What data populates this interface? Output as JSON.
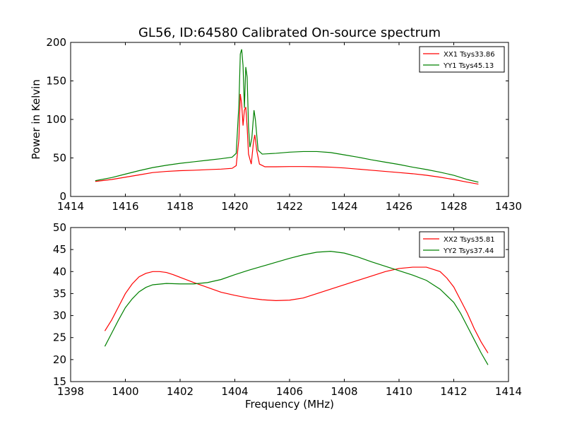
{
  "chart_data": [
    {
      "type": "line",
      "title": "GL56, ID:64580 Calibrated On-source spectrum",
      "xlabel": "",
      "ylabel": "Power in Kelvin",
      "xlim": [
        1414,
        1430
      ],
      "ylim": [
        0,
        200
      ],
      "xticks": [
        1414,
        1416,
        1418,
        1420,
        1422,
        1424,
        1426,
        1428,
        1430
      ],
      "yticks": [
        0,
        50,
        100,
        150,
        200
      ],
      "legend_position": "top-right",
      "grid": false,
      "series": [
        {
          "name": "XX1 Tsys33.86",
          "color": "#ff0000",
          "points": [
            [
              1414.9,
              19.5
            ],
            [
              1415.5,
              22
            ],
            [
              1416,
              25
            ],
            [
              1416.5,
              28
            ],
            [
              1417,
              31
            ],
            [
              1417.5,
              32.5
            ],
            [
              1418,
              33.5
            ],
            [
              1418.5,
              34
            ],
            [
              1419,
              34.8
            ],
            [
              1419.5,
              35.5
            ],
            [
              1419.9,
              36.5
            ],
            [
              1420.05,
              40
            ],
            [
              1420.15,
              75
            ],
            [
              1420.2,
              133
            ],
            [
              1420.25,
              120
            ],
            [
              1420.3,
              92
            ],
            [
              1420.35,
              112
            ],
            [
              1420.4,
              116
            ],
            [
              1420.45,
              90
            ],
            [
              1420.5,
              55
            ],
            [
              1420.6,
              42
            ],
            [
              1420.68,
              70
            ],
            [
              1420.73,
              80
            ],
            [
              1420.8,
              60
            ],
            [
              1420.9,
              42
            ],
            [
              1421.1,
              38.5
            ],
            [
              1421.5,
              38.5
            ],
            [
              1422,
              38.8
            ],
            [
              1422.5,
              38.8
            ],
            [
              1423,
              38.5
            ],
            [
              1423.5,
              38
            ],
            [
              1424,
              37
            ],
            [
              1424.5,
              35.5
            ],
            [
              1425,
              34
            ],
            [
              1425.5,
              32.5
            ],
            [
              1426,
              31
            ],
            [
              1426.5,
              29.5
            ],
            [
              1427,
              27.5
            ],
            [
              1427.5,
              25
            ],
            [
              1428,
              22
            ],
            [
              1428.5,
              18.5
            ],
            [
              1428.9,
              16
            ]
          ]
        },
        {
          "name": "YY1 Tsys45.13",
          "color": "#008000",
          "points": [
            [
              1414.9,
              20.5
            ],
            [
              1415.5,
              24.5
            ],
            [
              1416,
              29
            ],
            [
              1416.5,
              33.5
            ],
            [
              1417,
              37.5
            ],
            [
              1417.5,
              40.5
            ],
            [
              1418,
              43
            ],
            [
              1418.5,
              45
            ],
            [
              1419,
              47
            ],
            [
              1419.5,
              49
            ],
            [
              1419.9,
              51
            ],
            [
              1420.05,
              56
            ],
            [
              1420.15,
              120
            ],
            [
              1420.2,
              185
            ],
            [
              1420.25,
              191
            ],
            [
              1420.3,
              170
            ],
            [
              1420.35,
              115
            ],
            [
              1420.4,
              168
            ],
            [
              1420.45,
              155
            ],
            [
              1420.5,
              90
            ],
            [
              1420.55,
              64
            ],
            [
              1420.62,
              75
            ],
            [
              1420.7,
              112
            ],
            [
              1420.75,
              100
            ],
            [
              1420.85,
              60
            ],
            [
              1421,
              55
            ],
            [
              1421.5,
              56
            ],
            [
              1422,
              57.5
            ],
            [
              1422.5,
              58.3
            ],
            [
              1423,
              58.3
            ],
            [
              1423.5,
              57
            ],
            [
              1424,
              54
            ],
            [
              1424.5,
              51
            ],
            [
              1425,
              47.5
            ],
            [
              1425.5,
              44.5
            ],
            [
              1426,
              41.5
            ],
            [
              1426.5,
              38
            ],
            [
              1427,
              35
            ],
            [
              1427.5,
              31.5
            ],
            [
              1428,
              27.5
            ],
            [
              1428.5,
              22
            ],
            [
              1428.9,
              18.5
            ]
          ]
        }
      ]
    },
    {
      "type": "line",
      "title": "",
      "xlabel": "Frequency (MHz)",
      "ylabel": "",
      "xlim": [
        1398,
        1414
      ],
      "ylim": [
        15,
        50
      ],
      "xticks": [
        1398,
        1400,
        1402,
        1404,
        1406,
        1408,
        1410,
        1412,
        1414
      ],
      "yticks": [
        15,
        20,
        25,
        30,
        35,
        40,
        45,
        50
      ],
      "legend_position": "top-right",
      "grid": false,
      "series": [
        {
          "name": "XX2 Tsys35.81",
          "color": "#ff0000",
          "points": [
            [
              1399.25,
              26.5
            ],
            [
              1399.5,
              29
            ],
            [
              1399.75,
              32
            ],
            [
              1400,
              35
            ],
            [
              1400.25,
              37.2
            ],
            [
              1400.5,
              38.8
            ],
            [
              1400.75,
              39.6
            ],
            [
              1401,
              40
            ],
            [
              1401.25,
              40
            ],
            [
              1401.5,
              39.8
            ],
            [
              1401.75,
              39.3
            ],
            [
              1402,
              38.7
            ],
            [
              1402.5,
              37.5
            ],
            [
              1403,
              36.4
            ],
            [
              1403.5,
              35.3
            ],
            [
              1404,
              34.6
            ],
            [
              1404.5,
              34
            ],
            [
              1405,
              33.6
            ],
            [
              1405.5,
              33.4
            ],
            [
              1406,
              33.5
            ],
            [
              1406.5,
              34
            ],
            [
              1407,
              35
            ],
            [
              1407.5,
              36
            ],
            [
              1408,
              37
            ],
            [
              1408.5,
              38
            ],
            [
              1409,
              39
            ],
            [
              1409.5,
              40
            ],
            [
              1410,
              40.7
            ],
            [
              1410.5,
              41
            ],
            [
              1411,
              41
            ],
            [
              1411.5,
              40
            ],
            [
              1411.75,
              38.5
            ],
            [
              1412,
              36.5
            ],
            [
              1412.25,
              33.5
            ],
            [
              1412.5,
              30.5
            ],
            [
              1412.75,
              27
            ],
            [
              1413,
              24
            ],
            [
              1413.25,
              21.5
            ]
          ]
        },
        {
          "name": "YY2 Tsys37.44",
          "color": "#008000",
          "points": [
            [
              1399.25,
              23
            ],
            [
              1399.5,
              26
            ],
            [
              1399.75,
              29
            ],
            [
              1400,
              31.8
            ],
            [
              1400.25,
              33.8
            ],
            [
              1400.5,
              35.4
            ],
            [
              1400.75,
              36.4
            ],
            [
              1401,
              37
            ],
            [
              1401.5,
              37.3
            ],
            [
              1402,
              37.2
            ],
            [
              1402.5,
              37.2
            ],
            [
              1403,
              37.5
            ],
            [
              1403.5,
              38.2
            ],
            [
              1404,
              39.3
            ],
            [
              1404.5,
              40.3
            ],
            [
              1405,
              41.2
            ],
            [
              1405.5,
              42.1
            ],
            [
              1406,
              43
            ],
            [
              1406.5,
              43.8
            ],
            [
              1407,
              44.4
            ],
            [
              1407.5,
              44.6
            ],
            [
              1408,
              44.2
            ],
            [
              1408.5,
              43.3
            ],
            [
              1409,
              42.2
            ],
            [
              1409.5,
              41.2
            ],
            [
              1410,
              40.2
            ],
            [
              1410.5,
              39.2
            ],
            [
              1411,
              38
            ],
            [
              1411.5,
              36
            ],
            [
              1412,
              33
            ],
            [
              1412.25,
              30.5
            ],
            [
              1412.5,
              27.5
            ],
            [
              1412.75,
              24.5
            ],
            [
              1413,
              21.5
            ],
            [
              1413.25,
              18.8
            ]
          ]
        }
      ]
    }
  ]
}
